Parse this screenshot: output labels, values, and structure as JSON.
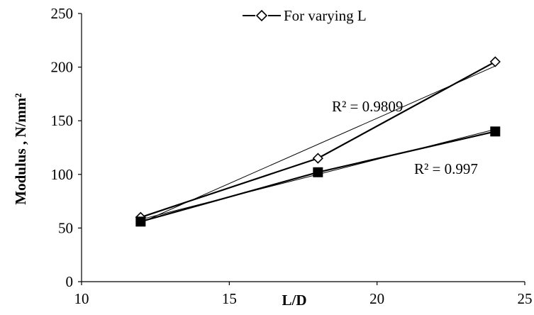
{
  "chart_data": {
    "type": "scatter",
    "title": "",
    "xlabel": "L/D",
    "ylabel": "Modulus , N/mm²",
    "xlim": [
      10,
      25
    ],
    "ylim": [
      0,
      250
    ],
    "x_ticks": [
      "10",
      "15",
      "20",
      "25"
    ],
    "y_ticks": [
      "0",
      "50",
      "100",
      "150",
      "200",
      "250"
    ],
    "grid": false,
    "legend": {
      "position": "top",
      "entries": [
        "For varying L"
      ]
    },
    "series": [
      {
        "name": "For varying L",
        "marker": "diamond-open",
        "x": [
          12,
          18,
          24
        ],
        "y": [
          60,
          115,
          205
        ]
      },
      {
        "marker": "square-filled",
        "x": [
          12,
          18,
          24
        ],
        "y": [
          56,
          102,
          140
        ]
      }
    ],
    "trendlines": [
      {
        "series_index": 0,
        "type": "linear",
        "x": [
          12,
          24
        ],
        "y": [
          55,
          201
        ],
        "r2_label": "R² = 0.9809"
      },
      {
        "series_index": 1,
        "type": "linear",
        "x": [
          12,
          24
        ],
        "y": [
          58,
          142
        ],
        "r2_label": "R² = 0.997"
      }
    ]
  }
}
